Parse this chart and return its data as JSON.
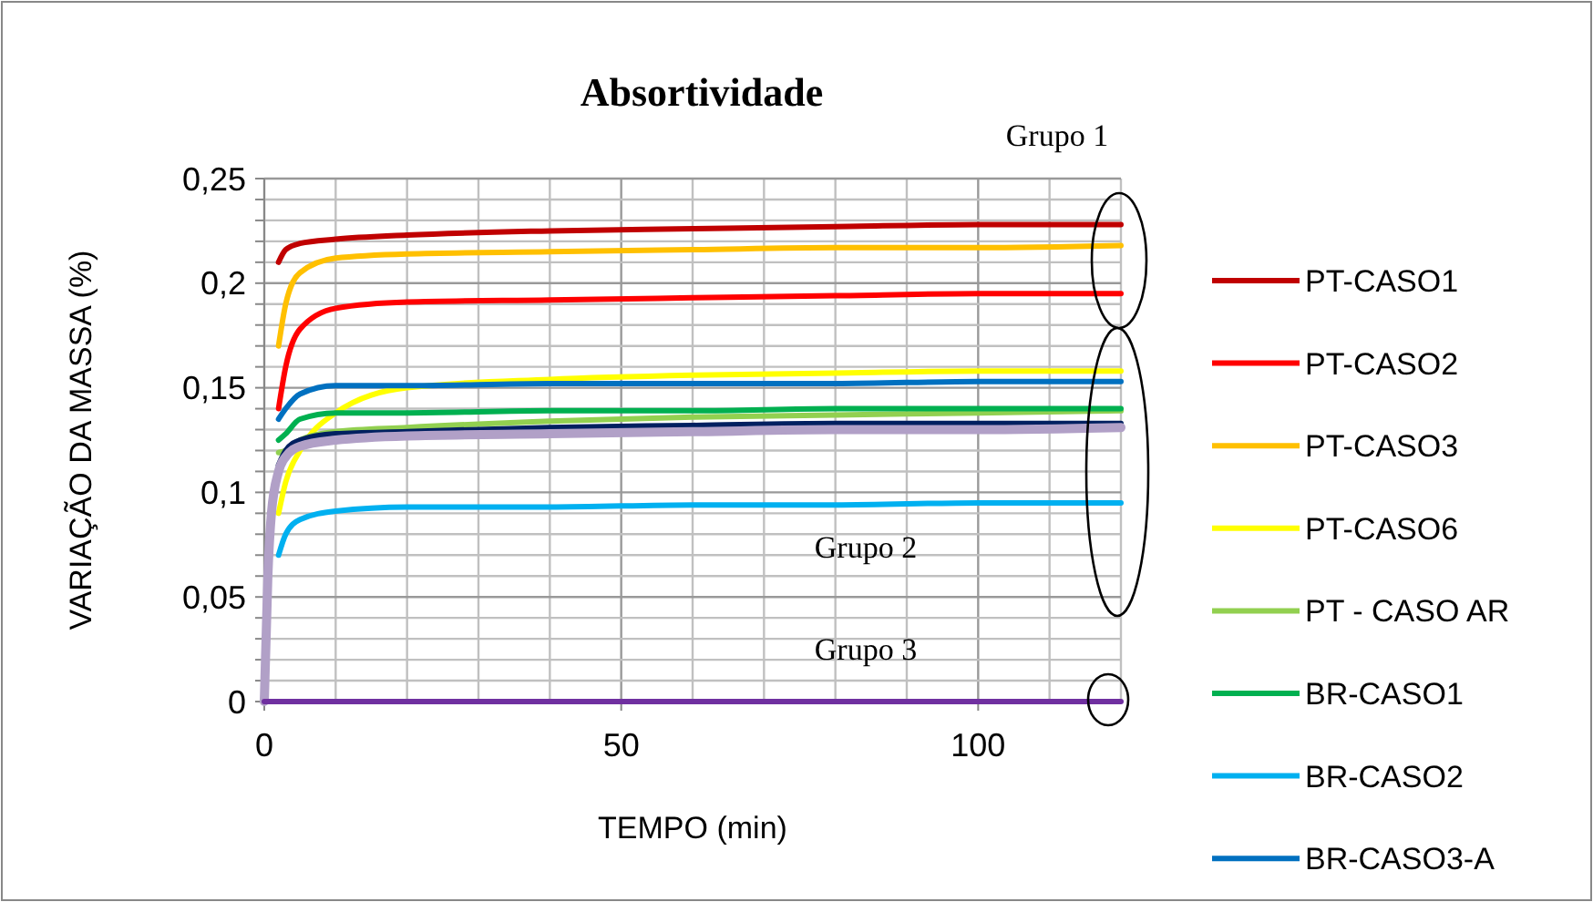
{
  "chart_data": {
    "type": "line",
    "title": "Absortividade",
    "xlabel": "TEMPO (min)",
    "ylabel": "VARIAÇÃO DA MASSA (%)",
    "x": [
      0,
      0.5,
      1,
      2,
      3,
      5,
      10,
      20,
      40,
      60,
      80,
      100,
      120
    ],
    "xlim": [
      0,
      120
    ],
    "xticks": [
      0,
      {
        "value": 10,
        "label": null
      },
      {
        "value": 20,
        "label": null
      },
      {
        "value": 30,
        "label": null
      },
      {
        "value": 40,
        "label": null
      },
      50,
      {
        "value": 60,
        "label": null
      },
      {
        "value": 70,
        "label": null
      },
      {
        "value": 80,
        "label": null
      },
      {
        "value": 90,
        "label": null
      },
      100,
      {
        "value": 110,
        "label": null
      },
      {
        "value": 120,
        "label": null
      }
    ],
    "ylim": [
      0,
      0.25
    ],
    "yticks": [
      {
        "value": 0,
        "label": "0"
      },
      {
        "value": 0.01,
        "label": null
      },
      {
        "value": 0.02,
        "label": null
      },
      {
        "value": 0.03,
        "label": null
      },
      {
        "value": 0.04,
        "label": null
      },
      {
        "value": 0.05,
        "label": "0,05"
      },
      {
        "value": 0.06,
        "label": null
      },
      {
        "value": 0.07,
        "label": null
      },
      {
        "value": 0.08,
        "label": null
      },
      {
        "value": 0.09,
        "label": null
      },
      {
        "value": 0.1,
        "label": "0,1"
      },
      {
        "value": 0.11,
        "label": null
      },
      {
        "value": 0.12,
        "label": null
      },
      {
        "value": 0.13,
        "label": null
      },
      {
        "value": 0.14,
        "label": null
      },
      {
        "value": 0.15,
        "label": "0,15"
      },
      {
        "value": 0.16,
        "label": null
      },
      {
        "value": 0.17,
        "label": null
      },
      {
        "value": 0.18,
        "label": null
      },
      {
        "value": 0.19,
        "label": null
      },
      {
        "value": 0.2,
        "label": "0,2"
      },
      {
        "value": 0.21,
        "label": null
      },
      {
        "value": 0.22,
        "label": null
      },
      {
        "value": 0.23,
        "label": null
      },
      {
        "value": 0.24,
        "label": null
      },
      {
        "value": 0.25,
        "label": "0,25"
      }
    ],
    "grid": true,
    "legend": "right",
    "line_style": "solid",
    "annotations": [
      "Grupo 1",
      "Grupo 2",
      "Grupo 3"
    ],
    "series": [
      {
        "name": "PT-CASO1",
        "color": "#c00000",
        "values": [
          null,
          null,
          null,
          0.21,
          0.216,
          0.219,
          0.221,
          0.223,
          0.225,
          0.226,
          0.227,
          0.228,
          0.228
        ]
      },
      {
        "name": "PT-CASO2",
        "color": "#ff0000",
        "values": [
          null,
          null,
          null,
          0.14,
          0.16,
          0.178,
          0.188,
          0.191,
          0.192,
          0.193,
          0.194,
          0.195,
          0.195
        ]
      },
      {
        "name": "PT-CASO3",
        "color": "#ffc000",
        "values": [
          null,
          null,
          null,
          0.17,
          0.19,
          0.205,
          0.212,
          0.214,
          0.215,
          0.216,
          0.217,
          0.217,
          0.218
        ]
      },
      {
        "name": "PT-CASO6",
        "color": "#ffff00",
        "values": [
          null,
          null,
          null,
          0.09,
          0.105,
          0.12,
          0.138,
          0.15,
          0.154,
          0.156,
          0.157,
          0.158,
          0.158
        ]
      },
      {
        "name": "PT - CASO AR",
        "color": "#92d050",
        "values": [
          null,
          null,
          null,
          0.119,
          0.12,
          0.125,
          0.129,
          0.131,
          0.134,
          0.136,
          0.137,
          0.138,
          0.139
        ]
      },
      {
        "name": "BR-CASO1",
        "color": "#00b050",
        "values": [
          null,
          null,
          null,
          0.125,
          0.128,
          0.135,
          0.138,
          0.138,
          0.139,
          0.139,
          0.14,
          0.14,
          0.14
        ]
      },
      {
        "name": "BR-CASO2",
        "color": "#00b0f0",
        "values": [
          null,
          null,
          null,
          0.07,
          0.08,
          0.087,
          0.091,
          0.093,
          0.093,
          0.094,
          0.094,
          0.095,
          0.095
        ]
      },
      {
        "name": "BR-CASO3-A",
        "color": "#0070c0",
        "values": [
          null,
          null,
          null,
          0.135,
          0.14,
          0.147,
          0.151,
          0.151,
          0.152,
          0.152,
          0.152,
          0.153,
          0.153
        ]
      },
      {
        "color": "#002060",
        "values": [
          null,
          null,
          null,
          0.113,
          0.12,
          0.125,
          0.128,
          0.129,
          0.131,
          0.132,
          0.133,
          0.133,
          0.133
        ]
      },
      {
        "color": "#b1a0c7",
        "values": [
          0,
          0.06,
          0.09,
          0.11,
          0.117,
          0.122,
          0.125,
          0.127,
          0.128,
          0.129,
          0.13,
          0.13,
          0.131
        ]
      },
      {
        "color": "#7030a0",
        "values": [
          0,
          0,
          0,
          0,
          0,
          0,
          0,
          0,
          0,
          0,
          0,
          0,
          0
        ]
      }
    ]
  }
}
